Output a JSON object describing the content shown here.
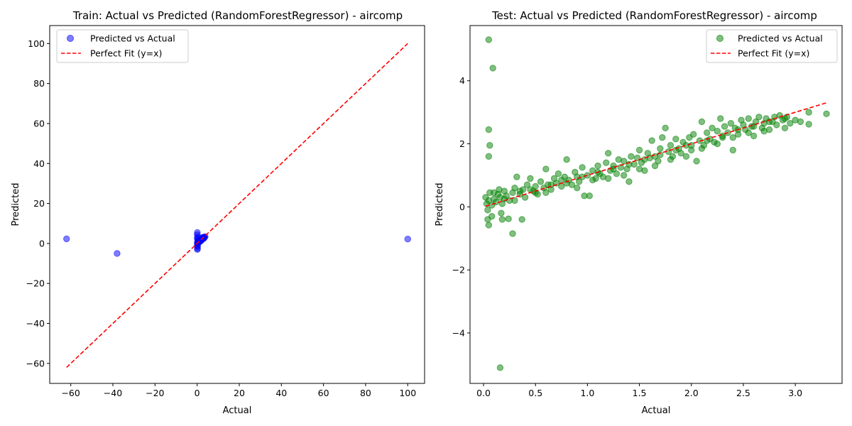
{
  "chart_data": [
    {
      "type": "scatter",
      "title": "Train: Actual vs Predicted (RandomForestRegressor) - aircomp",
      "xlabel": "Actual",
      "ylabel": "Predicted",
      "xlim": [
        -70,
        108
      ],
      "ylim": [
        -70,
        109
      ],
      "xticks": [
        -60,
        -40,
        -20,
        0,
        20,
        40,
        60,
        80,
        100
      ],
      "xtick_labels": [
        "−60",
        "−40",
        "−20",
        "0",
        "20",
        "40",
        "60",
        "80",
        "100"
      ],
      "yticks": [
        -60,
        -40,
        -20,
        0,
        20,
        40,
        60,
        80,
        100
      ],
      "ytick_labels": [
        "−60",
        "−40",
        "−20",
        "0",
        "20",
        "40",
        "60",
        "80",
        "100"
      ],
      "grid": false,
      "legend": {
        "placement": "top-left",
        "entries": [
          "Predicted vs Actual",
          "Perfect Fit (y=x)"
        ]
      },
      "series": [
        {
          "name": "Predicted vs Actual",
          "kind": "points",
          "color": "#0000ff",
          "opacity": 0.5,
          "points": [
            [
              -62,
              2.3
            ],
            [
              -38,
              -5
            ],
            [
              100,
              2.2
            ],
            [
              0.1,
              5.5
            ],
            [
              0.05,
              4.4
            ],
            [
              0.06,
              2.5
            ],
            [
              0.16,
              -2.5
            ],
            [
              0.1,
              -3
            ],
            [
              0.2,
              -1.5
            ],
            [
              0.3,
              0.3
            ],
            [
              0.5,
              0.6
            ],
            [
              0.8,
              0.9
            ],
            [
              1.0,
              1.1
            ],
            [
              1.2,
              1.2
            ],
            [
              1.5,
              1.4
            ],
            [
              1.8,
              1.9
            ],
            [
              2.0,
              2.1
            ],
            [
              2.3,
              2.2
            ],
            [
              2.6,
              2.5
            ],
            [
              2.9,
              2.8
            ],
            [
              3.2,
              3.0
            ],
            [
              3.5,
              3.2
            ],
            [
              3.8,
              3.4
            ],
            [
              0.4,
              1.0
            ],
            [
              0.7,
              0.3
            ],
            [
              1.3,
              1.8
            ],
            [
              2.1,
              1.6
            ],
            [
              2.8,
              3.1
            ],
            [
              3.3,
              2.7
            ],
            [
              0.2,
              0.8
            ],
            [
              0.9,
              1.5
            ],
            [
              1.6,
              1.1
            ],
            [
              2.4,
              2.9
            ],
            [
              3.0,
              2.4
            ],
            [
              0.05,
              0.1
            ],
            [
              0.1,
              -1
            ],
            [
              0.2,
              3.2
            ],
            [
              0.3,
              2.0
            ]
          ]
        },
        {
          "name": "Perfect Fit (y=x)",
          "kind": "line",
          "color": "#ff0000",
          "dashed": true,
          "x": [
            -62,
            100
          ],
          "y": [
            -62,
            100
          ]
        }
      ]
    },
    {
      "type": "scatter",
      "title": "Test: Actual vs Predicted (RandomForestRegressor) - aircomp",
      "xlabel": "Actual",
      "ylabel": "Predicted",
      "xlim": [
        -0.13,
        3.45
      ],
      "ylim": [
        -5.6,
        5.75
      ],
      "xticks": [
        0.0,
        0.5,
        1.0,
        1.5,
        2.0,
        2.5,
        3.0
      ],
      "xtick_labels": [
        "0.0",
        "0.5",
        "1.0",
        "1.5",
        "2.0",
        "2.5",
        "3.0"
      ],
      "yticks": [
        -4,
        -2,
        0,
        2,
        4
      ],
      "ytick_labels": [
        "−4",
        "−2",
        "0",
        "2",
        "4"
      ],
      "grid": false,
      "legend": {
        "placement": "top-right",
        "entries": [
          "Predicted vs Actual",
          "Perfect Fit (y=x)"
        ]
      },
      "series": [
        {
          "name": "Predicted vs Actual",
          "kind": "points",
          "color": "#008000",
          "opacity": 0.5,
          "points": [
            [
              0.05,
              5.3
            ],
            [
              0.09,
              4.4
            ],
            [
              0.05,
              2.45
            ],
            [
              0.06,
              1.95
            ],
            [
              0.05,
              1.6
            ],
            [
              0.16,
              -5.1
            ],
            [
              0.28,
              -0.85
            ],
            [
              0.05,
              -0.58
            ],
            [
              0.04,
              -0.4
            ],
            [
              0.17,
              -0.2
            ],
            [
              0.37,
              -0.4
            ],
            [
              0.24,
              -0.38
            ],
            [
              0.04,
              -0.1
            ],
            [
              0.18,
              -0.4
            ],
            [
              0.08,
              -0.3
            ],
            [
              0.02,
              0.3
            ],
            [
              0.03,
              0.1
            ],
            [
              0.05,
              0.2
            ],
            [
              0.06,
              0.45
            ],
            [
              0.08,
              0.05
            ],
            [
              0.1,
              0.25
            ],
            [
              0.12,
              0.15
            ],
            [
              0.14,
              0.4
            ],
            [
              0.16,
              0.3
            ],
            [
              0.18,
              0.1
            ],
            [
              0.2,
              0.5
            ],
            [
              0.22,
              0.35
            ],
            [
              0.25,
              0.2
            ],
            [
              0.28,
              0.45
            ],
            [
              0.3,
              0.6
            ],
            [
              0.32,
              0.95
            ],
            [
              0.35,
              0.4
            ],
            [
              0.38,
              0.55
            ],
            [
              0.4,
              0.3
            ],
            [
              0.42,
              0.7
            ],
            [
              0.45,
              0.9
            ],
            [
              0.48,
              0.5
            ],
            [
              0.5,
              0.65
            ],
            [
              0.52,
              0.4
            ],
            [
              0.55,
              0.8
            ],
            [
              0.58,
              0.6
            ],
            [
              0.6,
              1.2
            ],
            [
              0.62,
              0.7
            ],
            [
              0.65,
              0.55
            ],
            [
              0.68,
              0.9
            ],
            [
              0.7,
              0.75
            ],
            [
              0.72,
              1.05
            ],
            [
              0.75,
              0.65
            ],
            [
              0.78,
              0.95
            ],
            [
              0.8,
              1.5
            ],
            [
              0.82,
              0.85
            ],
            [
              0.85,
              0.7
            ],
            [
              0.88,
              1.1
            ],
            [
              0.9,
              0.95
            ],
            [
              0.92,
              0.8
            ],
            [
              0.95,
              1.25
            ],
            [
              0.97,
              0.35
            ],
            [
              1.0,
              1.0
            ],
            [
              1.02,
              0.35
            ],
            [
              1.05,
              1.15
            ],
            [
              1.08,
              0.9
            ],
            [
              1.1,
              1.3
            ],
            [
              1.12,
              1.05
            ],
            [
              1.15,
              0.95
            ],
            [
              1.18,
              1.4
            ],
            [
              1.2,
              1.7
            ],
            [
              1.22,
              1.15
            ],
            [
              1.25,
              1.3
            ],
            [
              1.28,
              1.05
            ],
            [
              1.3,
              1.5
            ],
            [
              1.32,
              1.25
            ],
            [
              1.35,
              1.45
            ],
            [
              1.38,
              1.2
            ],
            [
              1.4,
              0.8
            ],
            [
              1.42,
              1.6
            ],
            [
              1.45,
              1.35
            ],
            [
              1.48,
              1.55
            ],
            [
              1.5,
              1.8
            ],
            [
              1.52,
              1.4
            ],
            [
              1.55,
              1.15
            ],
            [
              1.58,
              1.7
            ],
            [
              1.6,
              1.55
            ],
            [
              1.62,
              2.1
            ],
            [
              1.65,
              1.6
            ],
            [
              1.68,
              1.45
            ],
            [
              1.7,
              1.85
            ],
            [
              1.72,
              2.2
            ],
            [
              1.75,
              2.5
            ],
            [
              1.78,
              1.75
            ],
            [
              1.8,
              1.95
            ],
            [
              1.82,
              1.6
            ],
            [
              1.85,
              2.15
            ],
            [
              1.88,
              1.85
            ],
            [
              1.9,
              1.7
            ],
            [
              1.92,
              2.05
            ],
            [
              1.95,
              1.95
            ],
            [
              1.98,
              2.2
            ],
            [
              2.0,
              1.8
            ],
            [
              2.02,
              2.3
            ],
            [
              2.05,
              1.45
            ],
            [
              2.08,
              2.1
            ],
            [
              2.1,
              2.7
            ],
            [
              2.12,
              1.95
            ],
            [
              2.15,
              2.35
            ],
            [
              2.18,
              2.15
            ],
            [
              2.2,
              2.5
            ],
            [
              2.22,
              2.05
            ],
            [
              2.25,
              2.4
            ],
            [
              2.28,
              2.8
            ],
            [
              2.3,
              2.2
            ],
            [
              2.32,
              2.55
            ],
            [
              2.35,
              2.35
            ],
            [
              2.38,
              2.65
            ],
            [
              2.4,
              1.8
            ],
            [
              2.42,
              2.5
            ],
            [
              2.45,
              2.3
            ],
            [
              2.48,
              2.75
            ],
            [
              2.5,
              2.6
            ],
            [
              2.52,
              2.45
            ],
            [
              2.55,
              2.8
            ],
            [
              2.58,
              2.55
            ],
            [
              2.6,
              2.25
            ],
            [
              2.62,
              2.7
            ],
            [
              2.65,
              2.85
            ],
            [
              2.68,
              2.5
            ],
            [
              2.7,
              2.65
            ],
            [
              2.72,
              2.8
            ],
            [
              2.75,
              2.45
            ],
            [
              2.78,
              2.7
            ],
            [
              2.8,
              2.85
            ],
            [
              2.82,
              2.6
            ],
            [
              2.85,
              2.9
            ],
            [
              2.88,
              2.75
            ],
            [
              2.9,
              2.5
            ],
            [
              2.92,
              2.85
            ],
            [
              2.95,
              2.65
            ],
            [
              3.0,
              2.75
            ],
            [
              3.05,
              2.7
            ],
            [
              3.13,
              3.0
            ],
            [
              3.13,
              2.62
            ],
            [
              3.3,
              2.95
            ],
            [
              0.1,
              0.45
            ],
            [
              0.15,
              0.55
            ],
            [
              0.3,
              0.2
            ],
            [
              0.45,
              0.55
            ],
            [
              0.6,
              0.45
            ],
            [
              0.75,
              0.85
            ],
            [
              0.9,
              0.6
            ],
            [
              1.05,
              0.85
            ],
            [
              1.2,
              0.9
            ],
            [
              1.35,
              1.0
            ],
            [
              1.5,
              1.2
            ],
            [
              1.65,
              1.3
            ],
            [
              1.8,
              1.5
            ],
            [
              1.95,
              1.6
            ],
            [
              2.1,
              1.85
            ],
            [
              2.25,
              2.0
            ],
            [
              2.4,
              2.2
            ],
            [
              2.55,
              2.35
            ],
            [
              2.7,
              2.4
            ],
            [
              0.2,
              0.25
            ],
            [
              0.35,
              0.5
            ],
            [
              0.5,
              0.45
            ],
            [
              0.65,
              0.7
            ],
            [
              0.8,
              0.75
            ],
            [
              0.95,
              0.95
            ],
            [
              1.1,
              1.1
            ],
            [
              1.25,
              1.2
            ],
            [
              1.4,
              1.35
            ],
            [
              1.55,
              1.5
            ],
            [
              1.7,
              1.65
            ],
            [
              1.85,
              1.8
            ],
            [
              2.0,
              1.95
            ],
            [
              2.15,
              2.1
            ],
            [
              2.3,
              2.25
            ],
            [
              2.45,
              2.45
            ],
            [
              2.6,
              2.55
            ],
            [
              2.75,
              2.7
            ],
            [
              2.9,
              2.8
            ]
          ]
        },
        {
          "name": "Perfect Fit (y=x)",
          "kind": "line",
          "color": "#ff0000",
          "dashed": true,
          "x": [
            0.02,
            3.3
          ],
          "y": [
            0.02,
            3.3
          ]
        }
      ]
    }
  ]
}
